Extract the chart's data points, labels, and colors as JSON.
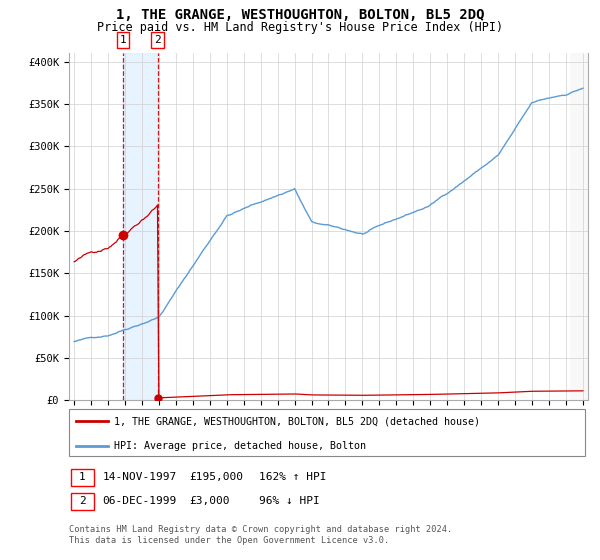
{
  "title": "1, THE GRANGE, WESTHOUGHTON, BOLTON, BL5 2DQ",
  "subtitle": "Price paid vs. HM Land Registry's House Price Index (HPI)",
  "ylabel_ticks": [
    "£0",
    "£50K",
    "£100K",
    "£150K",
    "£200K",
    "£250K",
    "£300K",
    "£350K",
    "£400K"
  ],
  "ytick_values": [
    0,
    50000,
    100000,
    150000,
    200000,
    250000,
    300000,
    350000,
    400000
  ],
  "ylim": [
    0,
    410000
  ],
  "xlim_start": 1994.7,
  "xlim_end": 2025.3,
  "hpi_color": "#5b9bd5",
  "price_color": "#cc0000",
  "marker1_date": 1997.87,
  "marker1_price": 195000,
  "marker1_label": "1",
  "marker2_date": 1999.92,
  "marker2_price": 3000,
  "marker2_label": "2",
  "future_start": 2024.25,
  "legend_line1": "1, THE GRANGE, WESTHOUGHTON, BOLTON, BL5 2DQ (detached house)",
  "legend_line2": "HPI: Average price, detached house, Bolton",
  "table_row1": [
    "1",
    "14-NOV-1997",
    "£195,000",
    "162% ↑ HPI"
  ],
  "table_row2": [
    "2",
    "06-DEC-1999",
    "£3,000",
    "96% ↓ HPI"
  ],
  "footer": "Contains HM Land Registry data © Crown copyright and database right 2024.\nThis data is licensed under the Open Government Licence v3.0.",
  "background_color": "#ffffff",
  "grid_color": "#d0d0d0"
}
